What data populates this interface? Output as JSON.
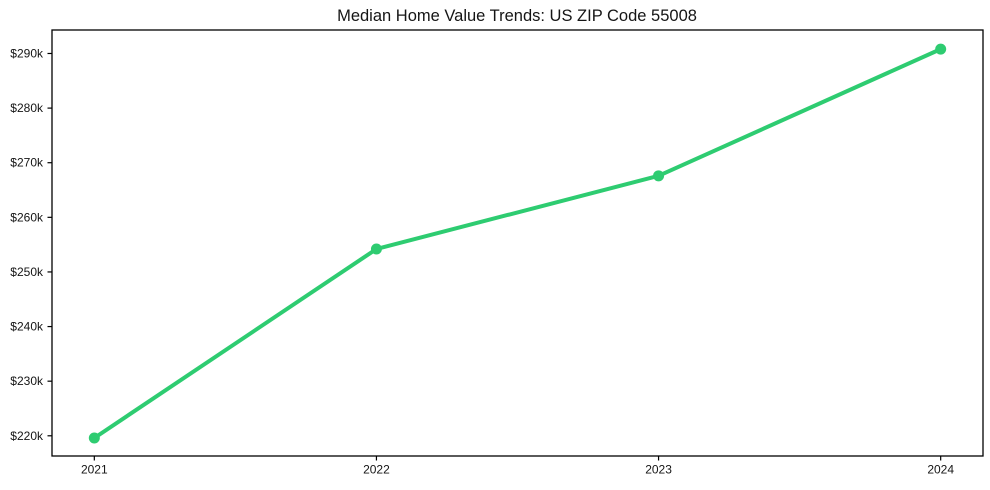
{
  "chart_data": {
    "type": "line",
    "title": "Median Home Value Trends: US ZIP Code 55008",
    "x": [
      2021,
      2022,
      2023,
      2024
    ],
    "x_tick_labels": [
      "2021",
      "2022",
      "2023",
      "2024"
    ],
    "series": [
      {
        "name": "median-home-value",
        "values": [
          219.6,
          254.2,
          267.6,
          290.8
        ]
      }
    ],
    "y_tick_values": [
      220,
      230,
      240,
      250,
      260,
      270,
      280,
      290
    ],
    "y_tick_labels": [
      "$220k",
      "$230k",
      "$240k",
      "$250k",
      "$260k",
      "$270k",
      "$280k",
      "$290k"
    ],
    "ylim": [
      216.3,
      294.3
    ],
    "xlim": [
      2020.85,
      2024.15
    ],
    "xlabel": "",
    "ylabel": "",
    "grid": false,
    "legend": "none",
    "line_color": "#2ecc71",
    "marker": "circle",
    "axis_color": "#000000"
  }
}
